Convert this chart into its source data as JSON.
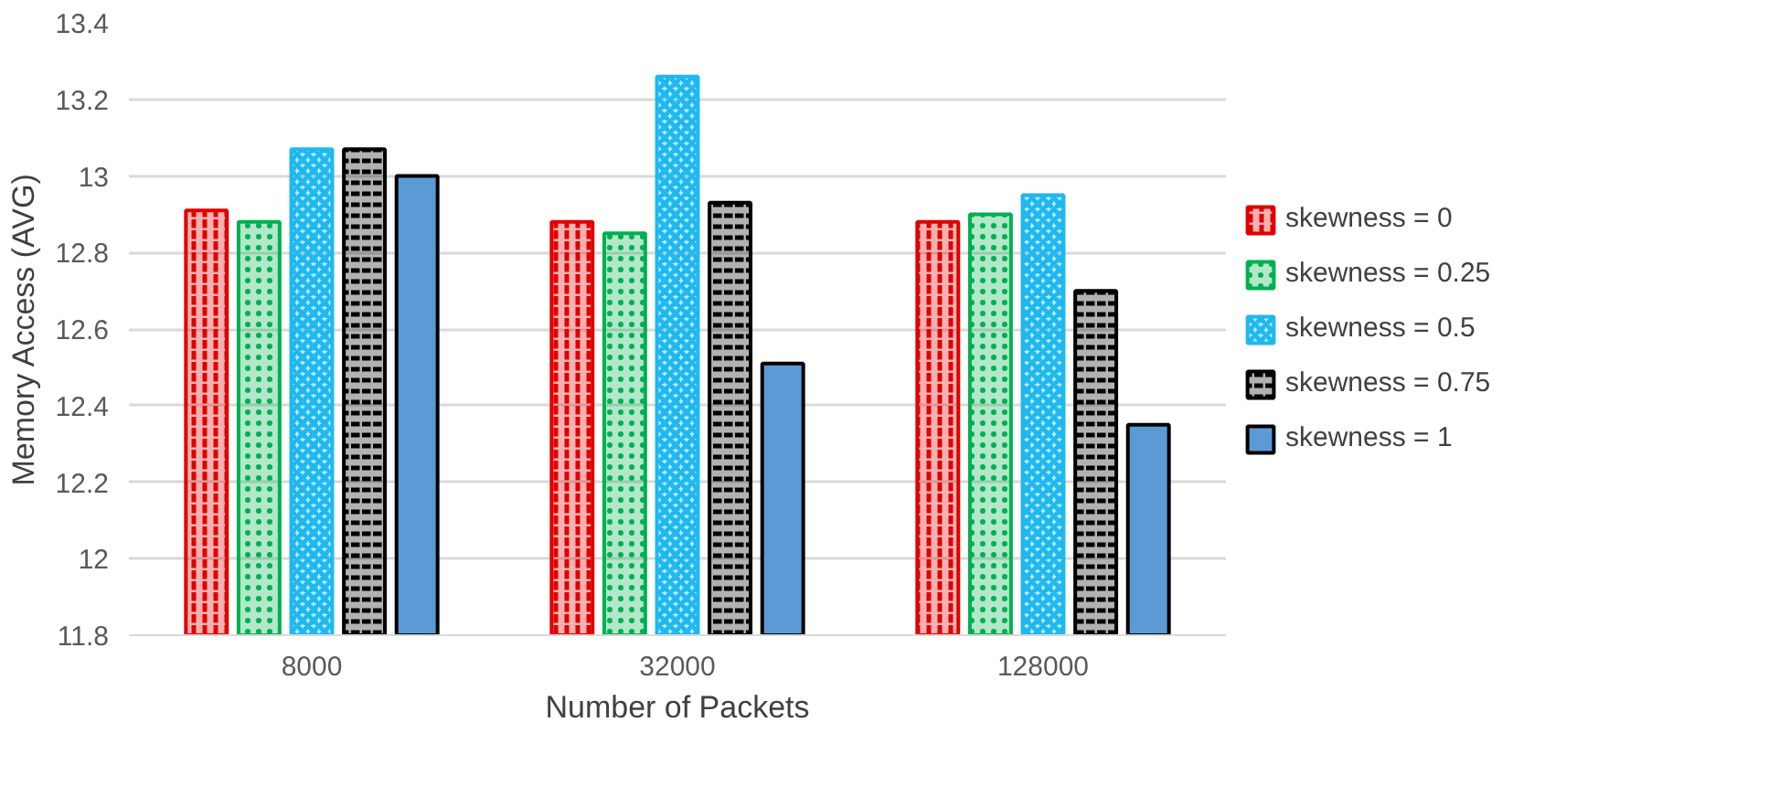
{
  "chart_data": {
    "type": "bar",
    "xlabel": "Number of Packets",
    "ylabel": "Memory Access (AVG)",
    "categories": [
      "8000",
      "32000",
      "128000"
    ],
    "series": [
      {
        "name": "skewness = 0",
        "color": "#e00000",
        "values": [
          12.91,
          12.88,
          12.88
        ]
      },
      {
        "name": "skewness = 0.25",
        "color": "#00b050",
        "values": [
          12.88,
          12.85,
          12.9
        ]
      },
      {
        "name": "skewness = 0.5",
        "color": "#1fb8f0",
        "values": [
          13.07,
          13.26,
          12.95
        ]
      },
      {
        "name": "skewness = 0.75",
        "color": "#000000",
        "values": [
          13.07,
          12.93,
          12.7
        ]
      },
      {
        "name": "skewness = 1",
        "color": "#5b9bd5",
        "values": [
          13.0,
          12.51,
          12.35
        ]
      }
    ],
    "ylim": [
      11.8,
      13.4
    ],
    "yticks": [
      11.8,
      12,
      12.2,
      12.4,
      12.6,
      12.8,
      13,
      13.2,
      13.4
    ],
    "grid": "y",
    "legend": "right"
  }
}
